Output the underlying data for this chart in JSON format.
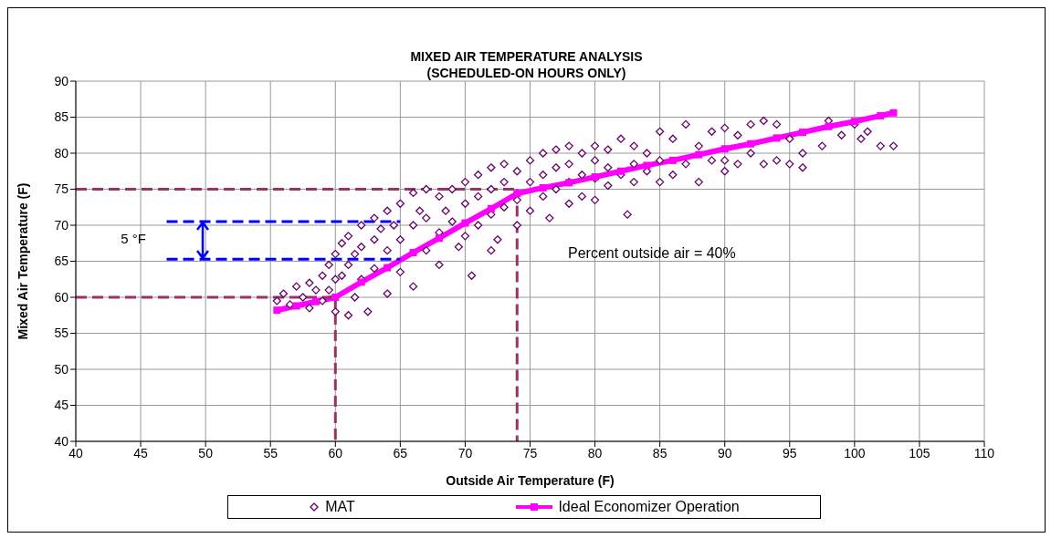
{
  "chart_data": {
    "type": "scatter",
    "title": "MIXED AIR TEMPERATURE ANALYSIS",
    "subtitle": "(SCHEDULED-ON HOURS ONLY)",
    "xlabel": "Outside Air Temperature (F)",
    "ylabel": "Mixed Air Temperature (F)",
    "xlim": [
      40,
      110
    ],
    "xticks": [
      40,
      45,
      50,
      55,
      60,
      65,
      70,
      75,
      80,
      85,
      90,
      95,
      100,
      105,
      110
    ],
    "ylim": [
      40,
      90
    ],
    "yticks": [
      40,
      45,
      50,
      55,
      60,
      65,
      70,
      75,
      80,
      85,
      90
    ],
    "grid": true,
    "legend": "bottom",
    "annotations": [
      "5 °F",
      "Percent outside air = 40%"
    ],
    "series": [
      {
        "name": "MAT",
        "marker": "diamond",
        "color": "#660066",
        "x": [
          55.5,
          56,
          56.5,
          57,
          57.5,
          58,
          58,
          58.5,
          59,
          59,
          59.5,
          59.5,
          60,
          60,
          60,
          60.5,
          60.5,
          61,
          61,
          61,
          61.5,
          61.5,
          62,
          62,
          62,
          62.5,
          63,
          63,
          63,
          63.5,
          64,
          64,
          64,
          64.5,
          65,
          65,
          65,
          66,
          66,
          66,
          66.5,
          67,
          67,
          67,
          68,
          68,
          68,
          68.5,
          69,
          69,
          69.5,
          70,
          70,
          70,
          70.5,
          71,
          71,
          71,
          72,
          72,
          72,
          72,
          72.5,
          73,
          73,
          73,
          74,
          74,
          74,
          75,
          75,
          75,
          76,
          76,
          76,
          76.5,
          77,
          77,
          77,
          78,
          78,
          78,
          78,
          79,
          79,
          79,
          80,
          80,
          80,
          80,
          81,
          81,
          81,
          82,
          82,
          82.5,
          83,
          83,
          83,
          84,
          84,
          85,
          85,
          85,
          86,
          86,
          87,
          87,
          88,
          88,
          89,
          89,
          90,
          90,
          90,
          91,
          91,
          92,
          92,
          93,
          93,
          94,
          94,
          95,
          95,
          96,
          96,
          97.5,
          98,
          99,
          100,
          100.5,
          101,
          102,
          103
        ],
        "values": [
          59.5,
          60.5,
          59,
          61.5,
          60,
          62,
          58.5,
          61,
          63,
          59.5,
          64.5,
          61,
          66,
          62.5,
          58,
          67.5,
          63,
          57.5,
          68.5,
          64.5,
          66,
          60,
          70,
          67,
          62.5,
          58,
          71,
          68,
          64,
          69.5,
          72,
          66.5,
          60.5,
          70,
          73,
          68,
          63.5,
          74.5,
          70,
          61.5,
          72,
          75,
          71,
          66.5,
          74,
          69,
          64.5,
          72,
          75,
          70.5,
          67,
          76,
          73,
          68.5,
          63,
          77,
          74,
          70,
          78,
          75,
          71.5,
          66.5,
          68,
          78.5,
          76,
          72.5,
          77.5,
          73.5,
          70,
          79,
          76,
          72,
          80,
          77,
          74,
          71,
          80.5,
          78,
          75,
          81,
          78.5,
          76,
          73,
          80,
          77,
          74,
          81,
          79,
          76.5,
          73.5,
          80.5,
          78,
          75.5,
          82,
          77,
          71.5,
          81,
          78.5,
          76,
          80,
          77.5,
          83,
          79,
          76,
          82,
          77,
          84,
          78.5,
          81,
          76,
          83,
          79,
          83.5,
          79,
          77.5,
          82.5,
          78.5,
          84,
          80,
          84.5,
          78.5,
          84,
          79,
          82,
          78.5,
          80,
          78,
          81,
          84.5,
          82.5,
          84,
          82,
          83,
          81,
          81
        ]
      },
      {
        "name": "Ideal Economizer Operation",
        "type": "line",
        "marker": "square",
        "color": "#ff00ff",
        "x": [
          55.5,
          57,
          58.5,
          60,
          62,
          64,
          66,
          68,
          70,
          72,
          74,
          76,
          78,
          80,
          82,
          84,
          86,
          88,
          90,
          92,
          94,
          96,
          98,
          100,
          102,
          103
        ],
        "values": [
          58.2,
          58.8,
          59.4,
          60,
          62.1,
          64.1,
          66.2,
          68.2,
          70.3,
          72.3,
          74.4,
          75.2,
          75.9,
          76.7,
          77.5,
          78.3,
          79,
          79.8,
          80.6,
          81.3,
          82.1,
          82.9,
          83.7,
          84.4,
          85.2,
          85.6
        ]
      },
      {
        "type": "line",
        "marker": "none",
        "line_style": "dashed",
        "color": "#993366",
        "x": [
          40,
          74
        ],
        "values": [
          75,
          75
        ]
      },
      {
        "type": "line",
        "marker": "none",
        "line_style": "dashed",
        "color": "#993366",
        "x": [
          40,
          60
        ],
        "values": [
          60,
          60
        ]
      },
      {
        "type": "line",
        "marker": "none",
        "line_style": "dashed",
        "color": "#993366",
        "x": [
          60,
          60
        ],
        "values": [
          60,
          40
        ]
      },
      {
        "type": "line",
        "marker": "none",
        "line_style": "dashed",
        "color": "#993366",
        "x": [
          74,
          74
        ],
        "values": [
          75,
          40
        ]
      },
      {
        "type": "line",
        "marker": "none",
        "line_style": "dashed",
        "color": "#0000ff",
        "x": [
          47,
          65
        ],
        "values": [
          70.5,
          70.5
        ]
      },
      {
        "type": "line",
        "marker": "none",
        "line_style": "dashed",
        "color": "#0000ff",
        "x": [
          47,
          65
        ],
        "values": [
          65.3,
          65.3
        ]
      }
    ]
  }
}
